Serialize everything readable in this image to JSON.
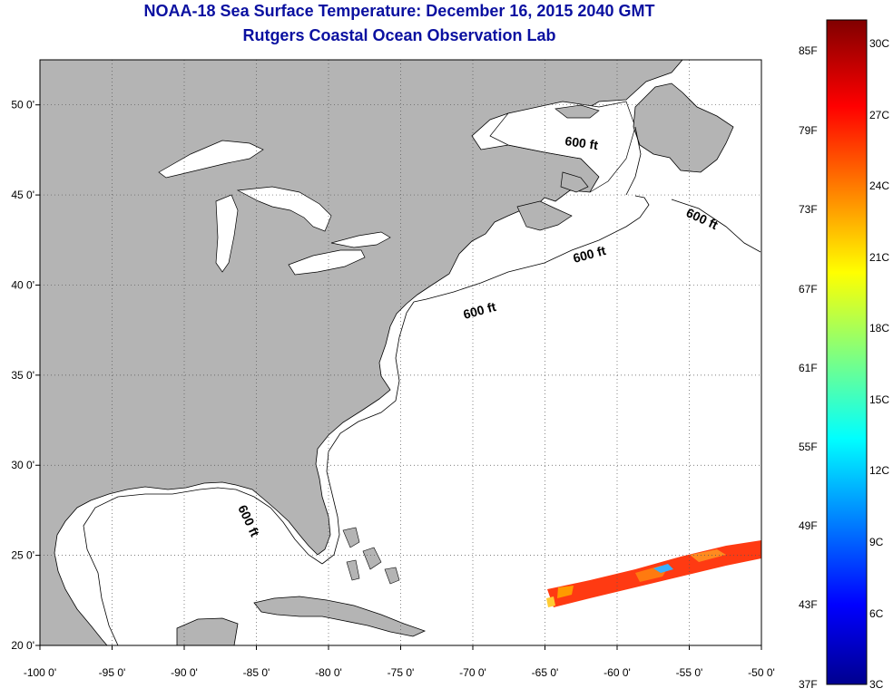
{
  "header": {
    "title": "NOAA-18 Sea Surface Temperature:  December 16, 2015 2040 GMT",
    "subtitle": "Rutgers Coastal Ocean Observation Lab"
  },
  "map": {
    "lon_range": [
      -100,
      -50
    ],
    "lat_range": [
      20,
      52.5
    ],
    "lon_ticks": [
      {
        "value": -100,
        "label": "-100 0'"
      },
      {
        "value": -95,
        "label": "-95 0'"
      },
      {
        "value": -90,
        "label": "-90 0'"
      },
      {
        "value": -85,
        "label": "-85 0'"
      },
      {
        "value": -80,
        "label": "-80 0'"
      },
      {
        "value": -75,
        "label": "-75 0'"
      },
      {
        "value": -70,
        "label": "-70 0'"
      },
      {
        "value": -65,
        "label": "-65 0'"
      },
      {
        "value": -60,
        "label": "-60 0'"
      },
      {
        "value": -55,
        "label": "-55 0'"
      },
      {
        "value": -50,
        "label": "-50 0'"
      }
    ],
    "lat_ticks": [
      {
        "value": 50,
        "label": "50 0'"
      },
      {
        "value": 45,
        "label": "45 0'"
      },
      {
        "value": 40,
        "label": "40 0'"
      },
      {
        "value": 35,
        "label": "35 0'"
      },
      {
        "value": 30,
        "label": "30 0'"
      },
      {
        "value": 25,
        "label": "25 0'"
      },
      {
        "value": 20,
        "label": "20 0'"
      }
    ],
    "grid": "dotted",
    "land_color": "#b4b4b4",
    "contour_labels": [
      "600 ft",
      "600 ft",
      "600 ft",
      "600 ft",
      "600 ft"
    ]
  },
  "colorbar": {
    "fahrenheit_labels": [
      "85F",
      "79F",
      "73F",
      "67F",
      "61F",
      "55F",
      "49F",
      "43F",
      "37F"
    ],
    "celsius_labels": [
      "30C",
      "27C",
      "24C",
      "21C",
      "18C",
      "15C",
      "12C",
      "9C",
      "6C",
      "3C"
    ],
    "colormap": "jet",
    "range_c": [
      3,
      31
    ]
  }
}
